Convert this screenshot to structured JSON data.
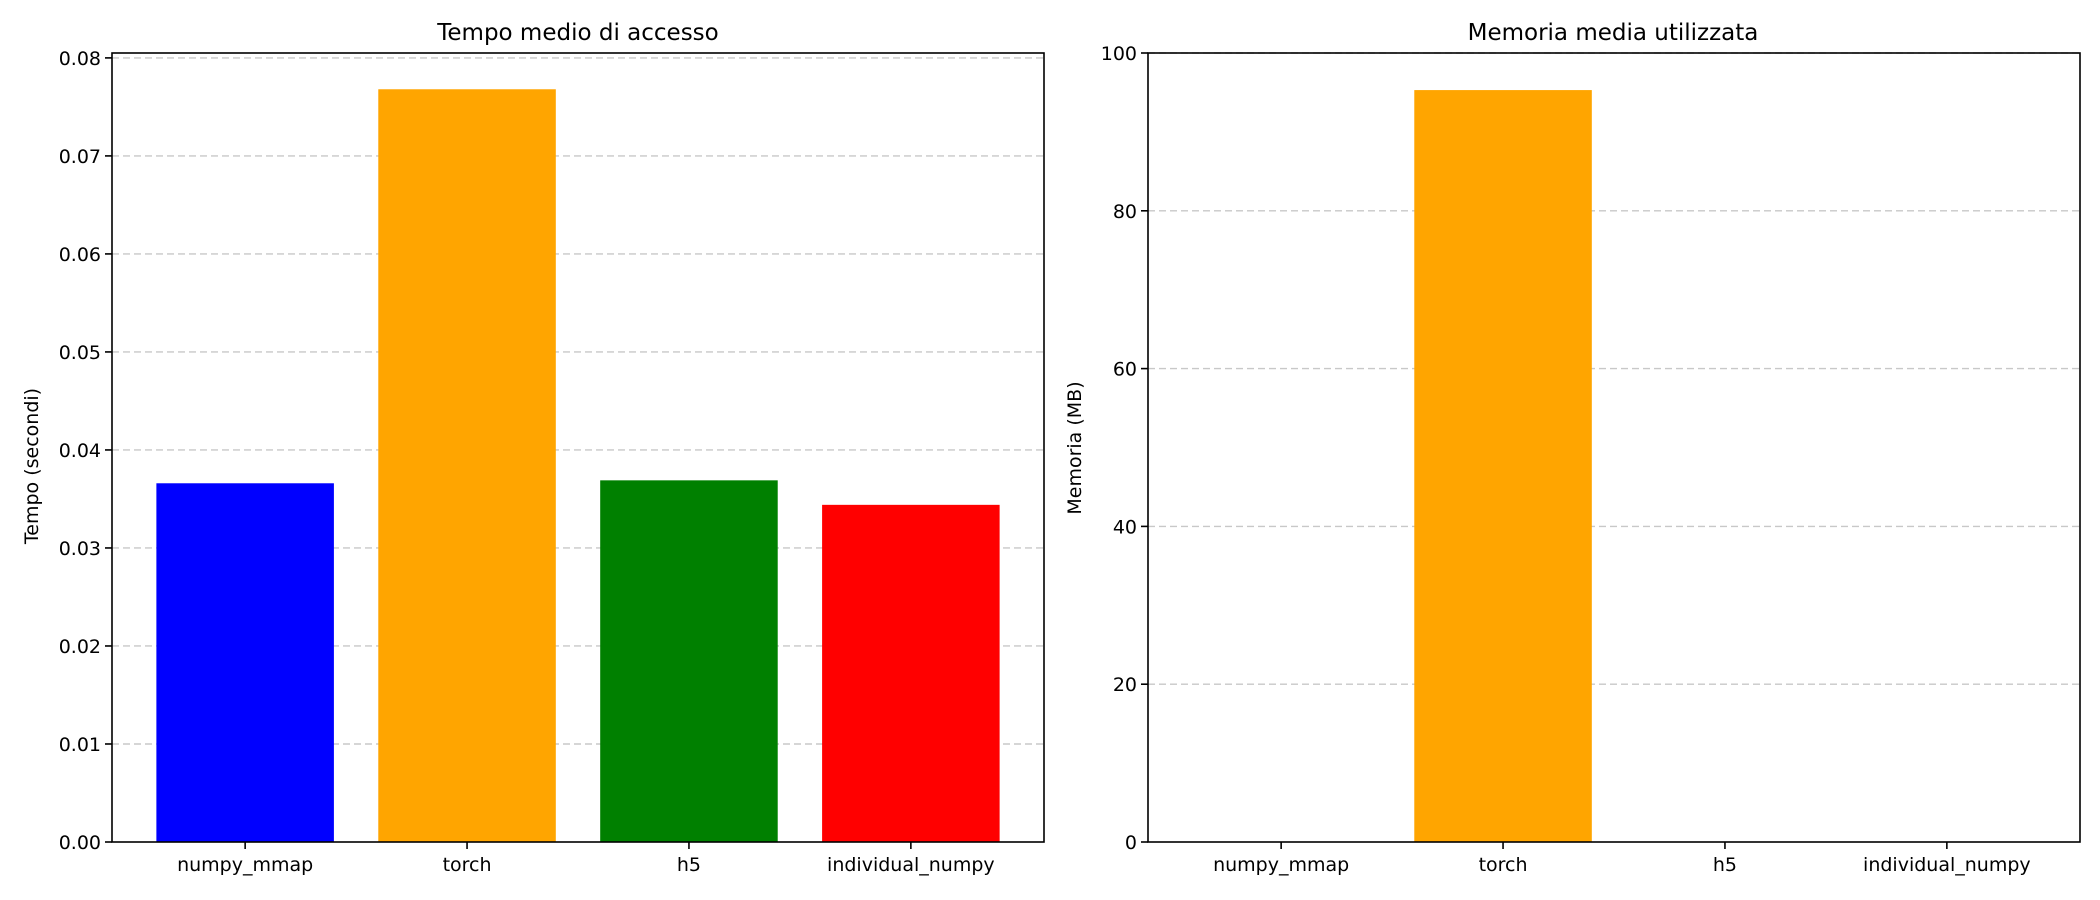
{
  "chart_data": [
    {
      "type": "bar",
      "title": "Tempo medio di accesso",
      "xlabel": "",
      "ylabel": "Tempo (secondi)",
      "categories": [
        "numpy_mmap",
        "torch",
        "h5",
        "individual_numpy"
      ],
      "values": [
        0.0366,
        0.0768,
        0.0369,
        0.0344
      ],
      "colors": [
        "#0000ff",
        "#ffa500",
        "#008000",
        "#ff0000"
      ],
      "ylim": [
        0,
        0.0805
      ],
      "yticks": [
        "0.00",
        "0.01",
        "0.02",
        "0.03",
        "0.04",
        "0.05",
        "0.06",
        "0.07",
        "0.08"
      ],
      "grid": "y dashed"
    },
    {
      "type": "bar",
      "title": "Memoria media utilizzata",
      "xlabel": "",
      "ylabel": "Memoria (MB)",
      "categories": [
        "numpy_mmap",
        "torch",
        "h5",
        "individual_numpy"
      ],
      "values": [
        0,
        95.3,
        0,
        0
      ],
      "colors": [
        "#0000ff",
        "#ffa500",
        "#008000",
        "#ff0000"
      ],
      "ylim": [
        0,
        100
      ],
      "yticks": [
        "0",
        "20",
        "40",
        "60",
        "80",
        "100"
      ],
      "grid": "y dashed"
    }
  ]
}
